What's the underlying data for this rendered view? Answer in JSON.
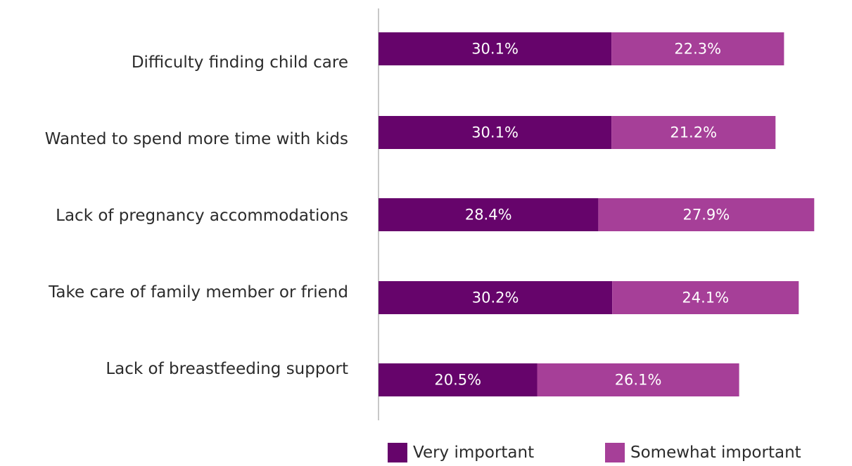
{
  "chart_data": {
    "type": "bar",
    "orientation": "horizontal",
    "stacked": true,
    "categories": [
      "Difficulty finding child care",
      "Wanted to spend more time with kids",
      "Lack of pregnancy accommodations",
      "Take care of family member or friend",
      "Lack of breastfeeding support"
    ],
    "series": [
      {
        "name": "Very important",
        "color": "#66046b",
        "values": [
          30.1,
          30.1,
          28.4,
          30.2,
          20.5
        ],
        "labels": [
          "30.1%",
          "30.1%",
          "28.4%",
          "30.2%",
          "20.5%"
        ]
      },
      {
        "name": "Somewhat important",
        "color": "#a63f98",
        "values": [
          22.3,
          21.2,
          27.9,
          24.1,
          26.1
        ],
        "labels": [
          "22.3%",
          "21.2%",
          "27.9%",
          "24.1%",
          "26.1%"
        ]
      }
    ],
    "xlim": [
      0,
      60
    ],
    "grid": false,
    "legend_position": "bottom-right"
  }
}
